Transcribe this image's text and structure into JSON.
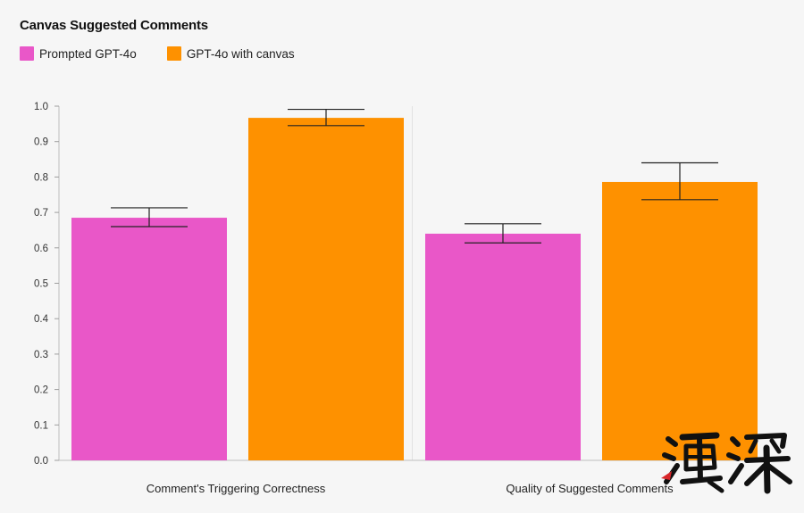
{
  "chart_data": {
    "type": "bar",
    "title": "Canvas Suggested Comments",
    "categories": [
      "Comment's Triggering Correctness",
      "Quality of Suggested Comments"
    ],
    "series": [
      {
        "name": "Prompted GPT-4o",
        "color": "#e957c8",
        "values": [
          0.685,
          0.64
        ],
        "error_low": [
          0.66,
          0.614
        ],
        "error_high": [
          0.713,
          0.668
        ]
      },
      {
        "name": "GPT-4o with canvas",
        "color": "#fe9100",
        "values": [
          0.967,
          0.786
        ],
        "error_low": [
          0.945,
          0.736
        ],
        "error_high": [
          0.991,
          0.84
        ]
      }
    ],
    "yticks": [
      "0.0",
      "0.1",
      "0.2",
      "0.3",
      "0.4",
      "0.5",
      "0.6",
      "0.7",
      "0.8",
      "0.9",
      "1.0"
    ],
    "ylim": [
      0,
      1.0
    ],
    "xlabel": "",
    "ylabel": "",
    "grid": "vertical separator between groups",
    "legend_position": "top-left"
  },
  "watermark": {
    "type": "logo",
    "text": "渔深"
  }
}
